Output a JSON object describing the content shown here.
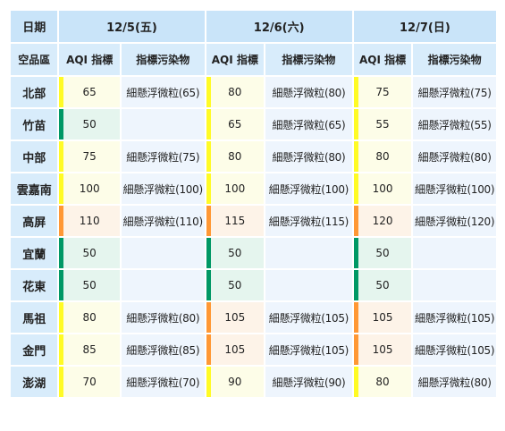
{
  "table": {
    "corner_label": "日期",
    "dates": [
      "12/5(五)",
      "12/6(六)",
      "12/7(日)"
    ],
    "region_header": "空品區",
    "aqi_header": "AQI 指標",
    "pollutant_header": "指標污染物",
    "level_colors": {
      "good": "#009865",
      "moderate": "#fffb26",
      "usg": "#ff9835"
    },
    "rows": [
      {
        "region": "北部",
        "cells": [
          {
            "aqi": "65",
            "pollutant": "細懸浮微粒(65)",
            "level": "moderate"
          },
          {
            "aqi": "80",
            "pollutant": "細懸浮微粒(80)",
            "level": "moderate"
          },
          {
            "aqi": "75",
            "pollutant": "細懸浮微粒(75)",
            "level": "moderate"
          }
        ]
      },
      {
        "region": "竹苗",
        "cells": [
          {
            "aqi": "50",
            "pollutant": "",
            "level": "good"
          },
          {
            "aqi": "65",
            "pollutant": "細懸浮微粒(65)",
            "level": "moderate"
          },
          {
            "aqi": "55",
            "pollutant": "細懸浮微粒(55)",
            "level": "moderate"
          }
        ]
      },
      {
        "region": "中部",
        "cells": [
          {
            "aqi": "75",
            "pollutant": "細懸浮微粒(75)",
            "level": "moderate"
          },
          {
            "aqi": "80",
            "pollutant": "細懸浮微粒(80)",
            "level": "moderate"
          },
          {
            "aqi": "80",
            "pollutant": "細懸浮微粒(80)",
            "level": "moderate"
          }
        ]
      },
      {
        "region": "雲嘉南",
        "cells": [
          {
            "aqi": "100",
            "pollutant": "細懸浮微粒(100)",
            "level": "moderate"
          },
          {
            "aqi": "100",
            "pollutant": "細懸浮微粒(100)",
            "level": "moderate"
          },
          {
            "aqi": "100",
            "pollutant": "細懸浮微粒(100)",
            "level": "moderate"
          }
        ]
      },
      {
        "region": "高屏",
        "cells": [
          {
            "aqi": "110",
            "pollutant": "細懸浮微粒(110)",
            "level": "usg"
          },
          {
            "aqi": "115",
            "pollutant": "細懸浮微粒(115)",
            "level": "usg"
          },
          {
            "aqi": "120",
            "pollutant": "細懸浮微粒(120)",
            "level": "usg"
          }
        ]
      },
      {
        "region": "宜蘭",
        "cells": [
          {
            "aqi": "50",
            "pollutant": "",
            "level": "good"
          },
          {
            "aqi": "50",
            "pollutant": "",
            "level": "good"
          },
          {
            "aqi": "50",
            "pollutant": "",
            "level": "good"
          }
        ]
      },
      {
        "region": "花東",
        "cells": [
          {
            "aqi": "50",
            "pollutant": "",
            "level": "good"
          },
          {
            "aqi": "50",
            "pollutant": "",
            "level": "good"
          },
          {
            "aqi": "50",
            "pollutant": "",
            "level": "good"
          }
        ]
      },
      {
        "region": "馬祖",
        "cells": [
          {
            "aqi": "80",
            "pollutant": "細懸浮微粒(80)",
            "level": "moderate"
          },
          {
            "aqi": "105",
            "pollutant": "細懸浮微粒(105)",
            "level": "usg"
          },
          {
            "aqi": "105",
            "pollutant": "細懸浮微粒(105)",
            "level": "usg"
          }
        ]
      },
      {
        "region": "金門",
        "cells": [
          {
            "aqi": "85",
            "pollutant": "細懸浮微粒(85)",
            "level": "moderate"
          },
          {
            "aqi": "105",
            "pollutant": "細懸浮微粒(105)",
            "level": "usg"
          },
          {
            "aqi": "105",
            "pollutant": "細懸浮微粒(105)",
            "level": "usg"
          }
        ]
      },
      {
        "region": "澎湖",
        "cells": [
          {
            "aqi": "70",
            "pollutant": "細懸浮微粒(70)",
            "level": "moderate"
          },
          {
            "aqi": "90",
            "pollutant": "細懸浮微粒(90)",
            "level": "moderate"
          },
          {
            "aqi": "80",
            "pollutant": "細懸浮微粒(80)",
            "level": "moderate"
          }
        ]
      }
    ]
  }
}
